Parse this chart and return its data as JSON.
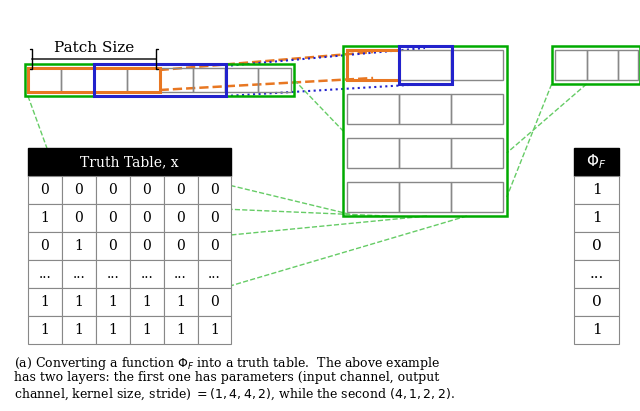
{
  "fig_width": 6.4,
  "fig_height": 4.11,
  "dpi": 100,
  "bg_color": "#ffffff",
  "patch_size_label": "Patch Size",
  "truth_table_header": "Truth Table, x",
  "phi_header": "$\\Phi_F$",
  "truth_table_data": [
    [
      "0",
      "0",
      "0",
      "0",
      "0",
      "0"
    ],
    [
      "1",
      "0",
      "0",
      "0",
      "0",
      "0"
    ],
    [
      "0",
      "1",
      "0",
      "0",
      "0",
      "0"
    ],
    [
      "...",
      "...",
      "...",
      "...",
      "...",
      "..."
    ],
    [
      "1",
      "1",
      "1",
      "1",
      "1",
      "0"
    ],
    [
      "1",
      "1",
      "1",
      "1",
      "1",
      "1"
    ]
  ],
  "phi_data": [
    "1",
    "1",
    "0",
    "...",
    "0",
    "1"
  ],
  "color_orange": "#e87722",
  "color_blue": "#2222cc",
  "color_green": "#00aa00",
  "color_gray": "#888888",
  "color_light_green": "#66cc66",
  "caption_lines": [
    "(a) Converting a function $\\Phi_F$ into a truth table.  The above example",
    "has two layers: the first one has parameters (input channel, output",
    "channel, kernel size, stride) $= (1, 4, 4, 2)$, while the second $(4, 1, 2, 2)$."
  ]
}
